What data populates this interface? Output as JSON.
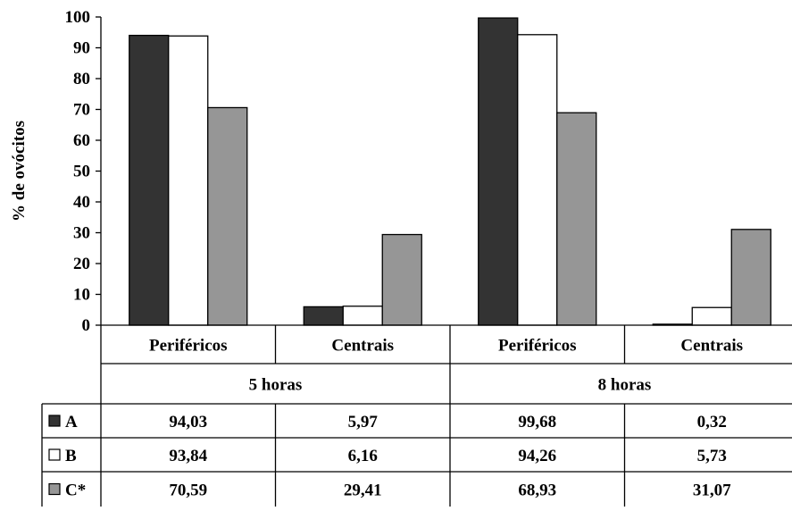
{
  "chart_data": {
    "type": "bar",
    "ylabel": "% de ovócitos",
    "ylim": [
      0,
      100
    ],
    "yticks": [
      "0",
      "10",
      "20",
      "30",
      "40",
      "50",
      "60",
      "70",
      "80",
      "90",
      "100"
    ],
    "categories": [
      "Periféricos",
      "Centrais",
      "Periféricos",
      "Centrais"
    ],
    "groups": [
      "5 horas",
      "8 horas"
    ],
    "series": [
      {
        "name": "A",
        "color": "#333333",
        "values": [
          94.03,
          5.97,
          99.68,
          0.32
        ],
        "labels": [
          "94,03",
          "5,97",
          "99,68",
          "0,32"
        ]
      },
      {
        "name": "B",
        "color": "#ffffff",
        "values": [
          93.84,
          6.16,
          94.26,
          5.73
        ],
        "labels": [
          "93,84",
          "6,16",
          "94,26",
          "5,73"
        ]
      },
      {
        "name": "C*",
        "color": "#969696",
        "values": [
          70.59,
          29.41,
          68.93,
          31.07
        ],
        "labels": [
          "70,59",
          "29,41",
          "68,93",
          "31,07"
        ]
      }
    ],
    "grid": false,
    "legend": "data-table"
  }
}
